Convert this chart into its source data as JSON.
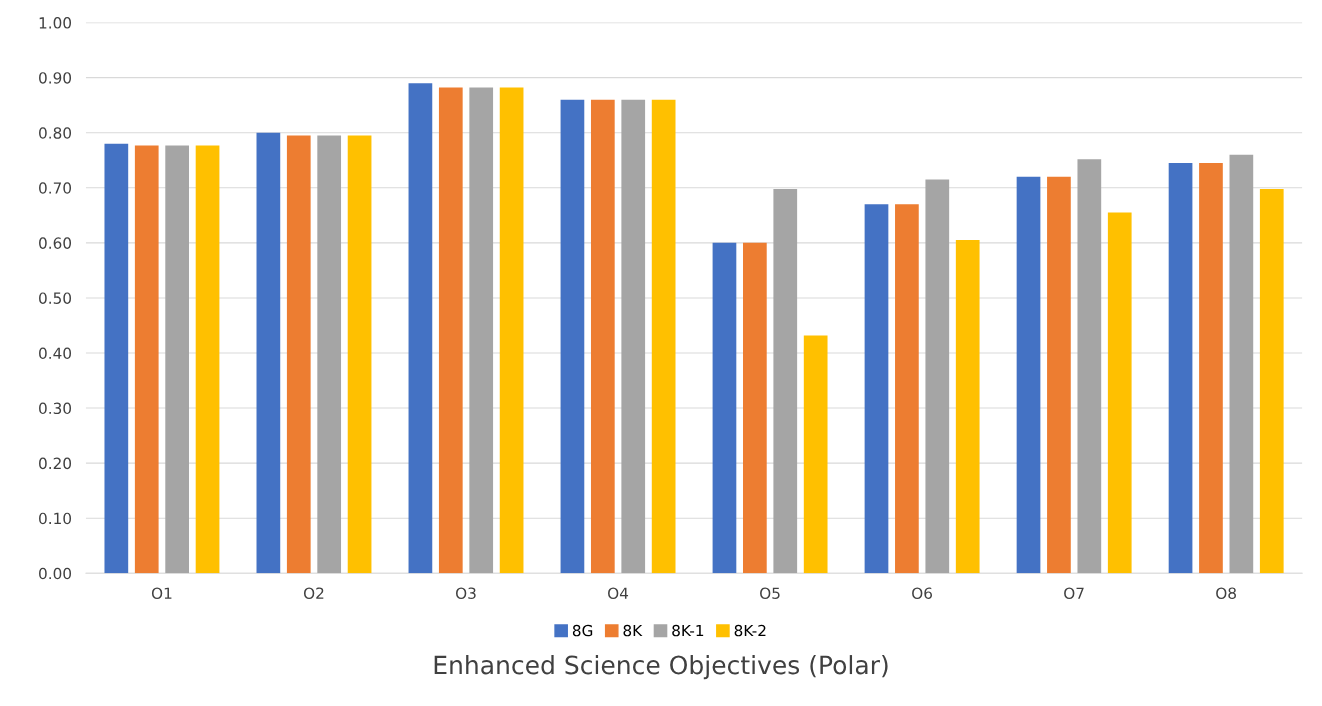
{
  "chart_data": {
    "type": "bar",
    "title": "Enhanced Science Objectives (Polar)",
    "categories": [
      "O1",
      "O2",
      "O3",
      "O4",
      "O5",
      "O6",
      "O7",
      "O8"
    ],
    "series": [
      {
        "name": "8G",
        "color": "#4472c4",
        "values": [
          0.78,
          0.8,
          0.89,
          0.86,
          0.6,
          0.67,
          0.72,
          0.745
        ]
      },
      {
        "name": "8K",
        "color": "#ed7d31",
        "values": [
          0.777,
          0.795,
          0.882,
          0.86,
          0.6,
          0.67,
          0.72,
          0.745
        ]
      },
      {
        "name": "8K-1",
        "color": "#a5a5a5",
        "values": [
          0.777,
          0.795,
          0.882,
          0.86,
          0.698,
          0.715,
          0.752,
          0.76
        ]
      },
      {
        "name": "8K-2",
        "color": "#ffc000",
        "values": [
          0.777,
          0.795,
          0.882,
          0.86,
          0.432,
          0.605,
          0.655,
          0.698
        ]
      }
    ],
    "ylim": [
      0,
      1
    ],
    "yticks": [
      {
        "value": 0,
        "label": "0.00"
      },
      {
        "value": 0.1,
        "label": "0.10"
      },
      {
        "value": 0.2,
        "label": "0.20"
      },
      {
        "value": 0.3,
        "label": "0.30"
      },
      {
        "value": 0.4,
        "label": "0.40"
      },
      {
        "value": 0.5,
        "label": "0.50"
      },
      {
        "value": 0.6,
        "label": "0.60"
      },
      {
        "value": 0.7,
        "label": "0.70"
      },
      {
        "value": 0.8,
        "label": "0.80"
      },
      {
        "value": 0.9,
        "label": "0.90"
      },
      {
        "value": 1,
        "label": "1.00"
      }
    ],
    "grid": "y",
    "legend": "bottom"
  }
}
